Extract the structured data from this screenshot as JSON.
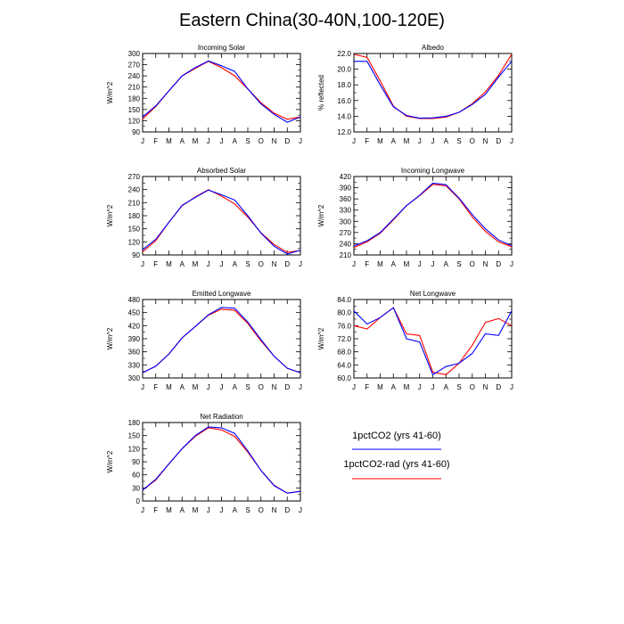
{
  "title": "Eastern China(30-40N,100-120E)",
  "legend": {
    "entries": [
      {
        "label": "1pctCO2 (yrs 41-60)",
        "color": "#0000ff"
      },
      {
        "label": "1pctCO2-rad (yrs 41-60)",
        "color": "#ff0000"
      }
    ]
  },
  "chart_data": [
    {
      "type": "line",
      "title": "Incoming Solar",
      "ylabel": "W/m^2",
      "x": [
        "J",
        "F",
        "M",
        "A",
        "M",
        "J",
        "J",
        "A",
        "S",
        "O",
        "N",
        "D",
        "J"
      ],
      "ylim": [
        90,
        300
      ],
      "yticks": [
        "90",
        "120",
        "150",
        "180",
        "210",
        "240",
        "270",
        "300"
      ],
      "series": [
        {
          "name": "1pctCO2 (yrs 41-60)",
          "color": "#0000ff",
          "values": [
            130,
            160,
            200,
            240,
            262,
            280,
            267,
            252,
            205,
            165,
            137,
            116,
            130
          ]
        },
        {
          "name": "1pctCO2-rad (yrs 41-60)",
          "color": "#ff0000",
          "values": [
            125,
            158,
            200,
            240,
            260,
            279,
            262,
            240,
            205,
            168,
            140,
            124,
            130
          ]
        }
      ]
    },
    {
      "type": "line",
      "title": "Albedo",
      "ylabel": "% reflected",
      "x": [
        "J",
        "F",
        "M",
        "A",
        "M",
        "J",
        "J",
        "A",
        "S",
        "O",
        "N",
        "D",
        "J"
      ],
      "ylim": [
        12,
        22
      ],
      "yticks": [
        "12.0",
        "14.0",
        "16.0",
        "18.0",
        "20.0",
        "22.0"
      ],
      "series": [
        {
          "name": "1pctCO2 (yrs 41-60)",
          "color": "#0000ff",
          "values": [
            21.0,
            21.0,
            18.0,
            15.2,
            14.1,
            13.75,
            13.8,
            14.0,
            14.5,
            15.5,
            16.8,
            19.0,
            21.0
          ]
        },
        {
          "name": "1pctCO2-rad (yrs 41-60)",
          "color": "#ff0000",
          "values": [
            21.9,
            21.5,
            18.5,
            15.3,
            14.0,
            13.7,
            13.7,
            13.9,
            14.5,
            15.6,
            17.1,
            19.2,
            21.9
          ]
        }
      ]
    },
    {
      "type": "line",
      "title": "Absorbed Solar",
      "ylabel": "W/m^2",
      "x": [
        "J",
        "F",
        "M",
        "A",
        "M",
        "J",
        "J",
        "A",
        "S",
        "O",
        "N",
        "D",
        "J"
      ],
      "ylim": [
        90,
        270
      ],
      "yticks": [
        "90",
        "120",
        "150",
        "180",
        "210",
        "240",
        "270"
      ],
      "series": [
        {
          "name": "1pctCO2 (yrs 41-60)",
          "color": "#0000ff",
          "values": [
            102,
            126,
            165,
            204,
            222,
            239,
            228,
            216,
            180,
            140,
            110,
            92,
            101
          ]
        },
        {
          "name": "1pctCO2-rad (yrs 41-60)",
          "color": "#ff0000",
          "values": [
            97,
            123,
            165,
            203,
            223,
            240,
            225,
            207,
            177,
            141,
            114,
            96,
            100
          ]
        }
      ]
    },
    {
      "type": "line",
      "title": "Incoming Longwave",
      "ylabel": "W/m^2",
      "x": [
        "J",
        "F",
        "M",
        "A",
        "M",
        "J",
        "J",
        "A",
        "S",
        "O",
        "N",
        "D",
        "J"
      ],
      "ylim": [
        210,
        420
      ],
      "yticks": [
        "210",
        "240",
        "270",
        "300",
        "330",
        "360",
        "390",
        "420"
      ],
      "series": [
        {
          "name": "1pctCO2 (yrs 41-60)",
          "color": "#0000ff",
          "values": [
            234,
            248,
            270,
            306,
            342,
            370,
            402,
            398,
            362,
            318,
            280,
            250,
            235
          ]
        },
        {
          "name": "1pctCO2-rad (yrs 41-60)",
          "color": "#ff0000",
          "values": [
            230,
            245,
            268,
            304,
            342,
            369,
            399,
            395,
            360,
            312,
            273,
            245,
            232
          ]
        }
      ]
    },
    {
      "type": "line",
      "title": "Emitted Longwave",
      "ylabel": "W/m^2",
      "x": [
        "J",
        "F",
        "M",
        "A",
        "M",
        "J",
        "J",
        "A",
        "S",
        "O",
        "N",
        "D",
        "J"
      ],
      "ylim": [
        300,
        480
      ],
      "yticks": [
        "300",
        "330",
        "360",
        "390",
        "420",
        "450",
        "480"
      ],
      "series": [
        {
          "name": "1pctCO2 (yrs 41-60)",
          "color": "#0000ff",
          "values": [
            312,
            327,
            355,
            392,
            418,
            445,
            462,
            460,
            428,
            388,
            350,
            322,
            312
          ]
        },
        {
          "name": "1pctCO2-rad (yrs 41-60)",
          "color": "#ff0000",
          "values": [
            312,
            327,
            355,
            392,
            418,
            444,
            458,
            455,
            425,
            385,
            350,
            322,
            312
          ]
        }
      ]
    },
    {
      "type": "line",
      "title": "Net Longwave",
      "ylabel": "W/m^2",
      "x": [
        "J",
        "F",
        "M",
        "A",
        "M",
        "J",
        "J",
        "A",
        "S",
        "O",
        "N",
        "D",
        "J"
      ],
      "ylim": [
        60,
        84
      ],
      "yticks": [
        "60.0",
        "64.0",
        "68.0",
        "72.0",
        "76.0",
        "80.0",
        "84.0"
      ],
      "series": [
        {
          "name": "1pctCO2 (yrs 41-60)",
          "color": "#0000ff",
          "values": [
            80.5,
            76.5,
            78.5,
            81.5,
            72.0,
            71.0,
            61.0,
            63.5,
            64.5,
            67.5,
            73.5,
            73.0,
            80.5
          ]
        },
        {
          "name": "1pctCO2-rad (yrs 41-60)",
          "color": "#ff0000",
          "values": [
            76.0,
            75.0,
            78.5,
            81.5,
            73.5,
            73.0,
            61.8,
            61.0,
            64.5,
            70.0,
            77.0,
            78.2,
            76.0
          ]
        }
      ]
    },
    {
      "type": "line",
      "title": "Net Radiation",
      "ylabel": "W/m^2",
      "x": [
        "J",
        "F",
        "M",
        "A",
        "M",
        "J",
        "J",
        "A",
        "S",
        "O",
        "N",
        "D",
        "J"
      ],
      "ylim": [
        0,
        180
      ],
      "yticks": [
        "0",
        "30",
        "60",
        "90",
        "120",
        "150",
        "180"
      ],
      "series": [
        {
          "name": "1pctCO2 (yrs 41-60)",
          "color": "#0000ff",
          "values": [
            25,
            50,
            85,
            120,
            150,
            170,
            168,
            155,
            115,
            70,
            35,
            18,
            22
          ]
        },
        {
          "name": "1pctCO2-rad (yrs 41-60)",
          "color": "#ff0000",
          "values": [
            25,
            48,
            85,
            120,
            148,
            168,
            163,
            148,
            112,
            70,
            36,
            18,
            22
          ]
        }
      ]
    }
  ]
}
